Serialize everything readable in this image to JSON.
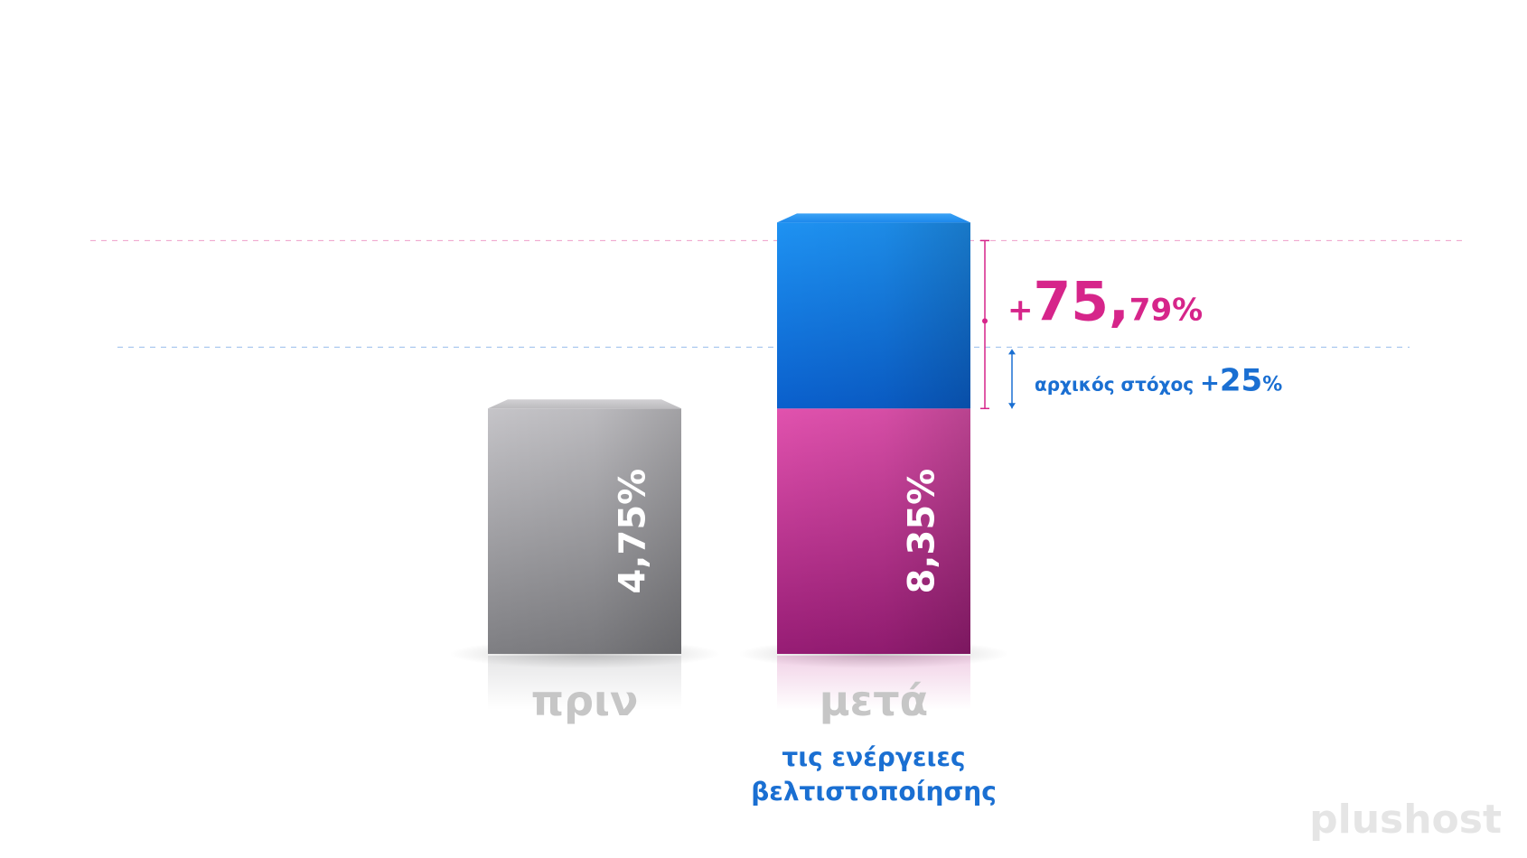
{
  "chart_data": {
    "type": "bar",
    "categories": [
      "πριν",
      "μετά"
    ],
    "category_note": "τις ενέργειες βελτιστοποίησης",
    "category_note_lines": [
      "τις ενέργειες",
      "βελτιστοποίησης"
    ],
    "series": [
      {
        "values": [
          4.75,
          8.35
        ],
        "labels": [
          "4,75%",
          "8,35%"
        ]
      }
    ],
    "after_segments": {
      "base": 4.75,
      "increase": 3.6
    },
    "ylim": [
      0,
      12
    ],
    "grid": true,
    "annotations": {
      "increase": {
        "value": 75.79,
        "text_plus": "+",
        "text_main": "75,",
        "text_small": "79%"
      },
      "target": {
        "value": 25,
        "text_prefix": "αρχικός στόχος ",
        "text_plus": "+",
        "text_main": "25",
        "text_pct": "%"
      }
    }
  },
  "colors": {
    "before_top": "#c3c2c6",
    "before_bottom": "#808084",
    "after_base_top": "#e04fad",
    "after_base_bottom": "#9b1f78",
    "after_gain_top": "#1d8ff0",
    "after_gain_bottom": "#0a63cf",
    "magenta": "#d6258a",
    "blue": "#1a6fd2",
    "category_gray": "#c6c6c6",
    "grid": "#ececec"
  },
  "logo": {
    "text": "plushost"
  }
}
